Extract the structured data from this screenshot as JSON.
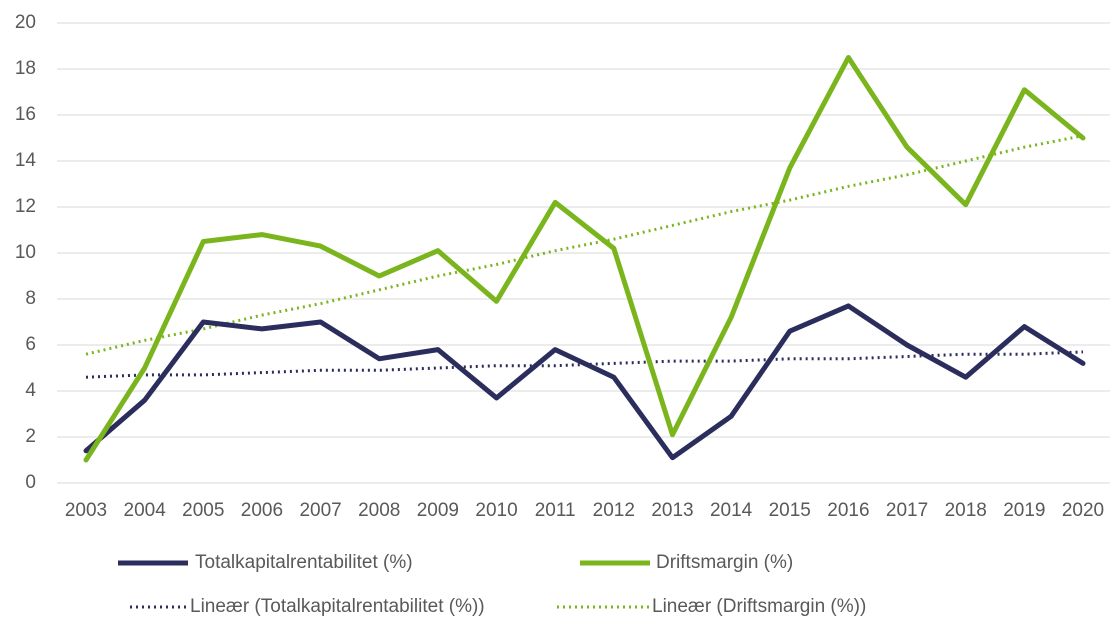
{
  "chart_data": {
    "type": "line",
    "categories": [
      "2003",
      "2004",
      "2005",
      "2006",
      "2007",
      "2008",
      "2009",
      "2010",
      "2011",
      "2012",
      "2013",
      "2014",
      "2015",
      "2016",
      "2017",
      "2018",
      "2019",
      "2020"
    ],
    "series": [
      {
        "name": "Totalkapitalrentabilitet (%)",
        "color": "#2b2d5c",
        "style": "solid",
        "values": [
          1.4,
          3.6,
          7.0,
          6.7,
          7.0,
          5.4,
          5.8,
          3.7,
          5.8,
          4.6,
          1.1,
          2.9,
          6.6,
          7.7,
          6.0,
          4.6,
          6.8,
          5.2
        ]
      },
      {
        "name": "Driftsmargin (%)",
        "color": "#7ab51d",
        "style": "solid",
        "values": [
          1.0,
          5.0,
          10.5,
          10.8,
          10.3,
          9.0,
          10.1,
          7.9,
          12.2,
          10.2,
          2.1,
          7.2,
          13.7,
          18.5,
          14.6,
          12.1,
          17.1,
          15.0
        ]
      },
      {
        "name": "Lineær (Totalkapitalrentabilitet (%))",
        "color": "#2b2d5c",
        "style": "dotted",
        "values": [
          4.6,
          4.7,
          4.7,
          4.8,
          4.9,
          4.9,
          5.0,
          5.1,
          5.1,
          5.2,
          5.3,
          5.3,
          5.4,
          5.4,
          5.5,
          5.6,
          5.6,
          5.7
        ]
      },
      {
        "name": "Lineær (Driftsmargin (%))",
        "color": "#7ab51d",
        "style": "dotted",
        "values": [
          5.6,
          6.2,
          6.7,
          7.3,
          7.8,
          8.4,
          9.0,
          9.5,
          10.1,
          10.6,
          11.2,
          11.8,
          12.3,
          12.9,
          13.4,
          14.0,
          14.6,
          15.1
        ]
      }
    ],
    "ylim": [
      0,
      20
    ],
    "yticks": [
      0,
      2,
      4,
      6,
      8,
      10,
      12,
      14,
      16,
      18,
      20
    ],
    "grid": true,
    "legend": "bottom"
  }
}
